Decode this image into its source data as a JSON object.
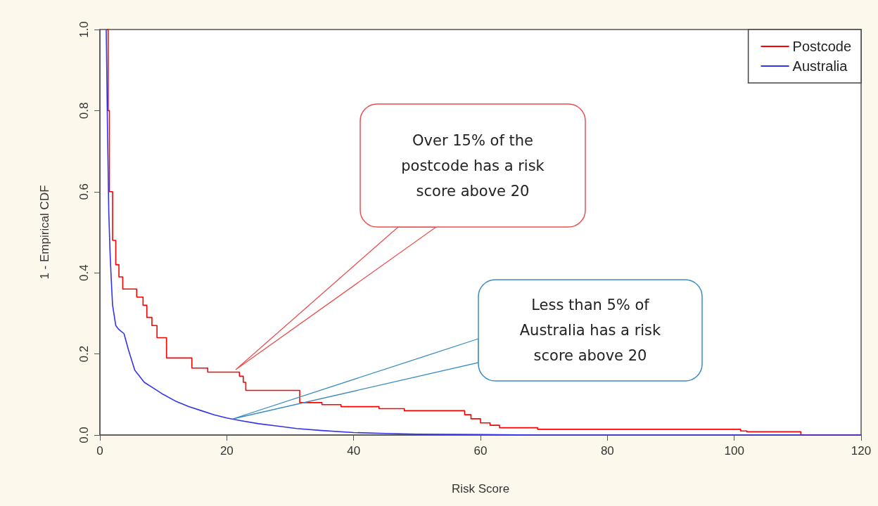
{
  "chart_data": {
    "type": "step",
    "xlabel": "Risk Score",
    "ylabel": "1 - Empirical CDF",
    "xlim": [
      0,
      120
    ],
    "ylim": [
      0,
      1
    ],
    "xticks": [
      0,
      20,
      40,
      60,
      80,
      100,
      120
    ],
    "yticks": [
      {
        "value": 0,
        "label": "0.0"
      },
      {
        "value": 0.2,
        "label": "0.2"
      },
      {
        "value": 0.4,
        "label": "0.4"
      },
      {
        "value": 0.6,
        "label": "0.6"
      },
      {
        "value": 0.8,
        "label": "0.8"
      },
      {
        "value": 1,
        "label": "1.0"
      }
    ],
    "legend": "top right",
    "grid": false,
    "series": [
      {
        "name": "Postcode",
        "color": "#ff0000",
        "x": [
          1.1,
          1.3,
          1.5,
          2,
          2.5,
          3,
          3.6,
          5.8,
          6.8,
          7.4,
          8.2,
          9,
          10.5,
          14.5,
          17,
          22,
          22.6,
          23,
          31.5,
          35,
          38,
          44,
          48,
          57.5,
          58.5,
          60,
          61.5,
          63,
          69,
          101,
          102,
          110.5,
          120
        ],
        "values": [
          1.0,
          0.8,
          0.6,
          0.48,
          0.42,
          0.39,
          0.36,
          0.34,
          0.32,
          0.29,
          0.27,
          0.24,
          0.19,
          0.165,
          0.155,
          0.145,
          0.13,
          0.11,
          0.08,
          0.075,
          0.07,
          0.065,
          0.06,
          0.05,
          0.04,
          0.03,
          0.024,
          0.018,
          0.014,
          0.01,
          0.008,
          0,
          0
        ]
      },
      {
        "name": "Australia",
        "color": "#3333ee",
        "type": "line",
        "x": [
          1,
          1.2,
          1.4,
          1.6,
          1.8,
          2,
          2.5,
          3,
          3.8,
          4.5,
          5.5,
          7,
          8.5,
          10,
          12,
          14,
          16,
          18,
          20,
          22,
          25,
          28,
          31,
          35,
          40,
          45,
          50,
          60,
          70,
          80,
          120
        ],
        "values": [
          1,
          0.75,
          0.55,
          0.45,
          0.38,
          0.32,
          0.27,
          0.26,
          0.25,
          0.21,
          0.16,
          0.13,
          0.115,
          0.1,
          0.083,
          0.07,
          0.06,
          0.05,
          0.042,
          0.036,
          0.028,
          0.022,
          0.016,
          0.011,
          0.006,
          0.004,
          0.002,
          0.001,
          0,
          0,
          0
        ]
      }
    ],
    "annotations": [
      "Over 15% of the postcode has a risk score above 20",
      "Less than 5% of Australia has a risk score above 20"
    ]
  }
}
